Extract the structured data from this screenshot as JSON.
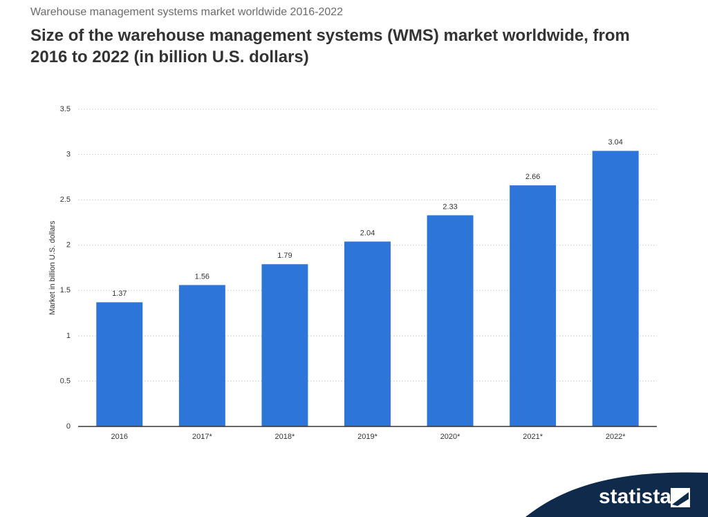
{
  "logo": "statista",
  "chart_data": {
    "type": "bar",
    "subtitle": "Warehouse management systems market worldwide 2016-2022",
    "title": "Size of the warehouse management systems (WMS) market worldwide, from 2016 to 2022 (in billion U.S. dollars)",
    "y_label": "Market in billion U.S. dollars",
    "categories": [
      "2016",
      "2017*",
      "2018*",
      "2019*",
      "2020*",
      "2021*",
      "2022*"
    ],
    "values": [
      1.37,
      1.56,
      1.79,
      2.04,
      2.33,
      2.66,
      3.04
    ],
    "color": "#2e75d9",
    "ylim": [
      0,
      3.5
    ],
    "yticks": [
      0,
      0.5,
      1,
      1.5,
      2,
      2.5,
      3,
      3.5
    ],
    "grid": true
  }
}
